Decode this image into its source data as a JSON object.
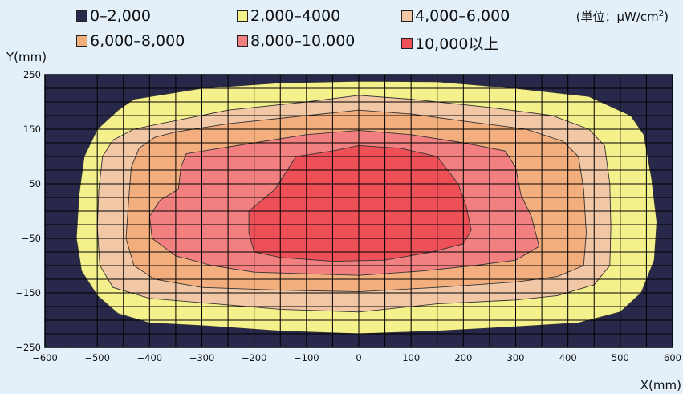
{
  "legend": {
    "items": [
      {
        "label": "0–2,000",
        "color": "#28284a"
      },
      {
        "label": "2,000–4000",
        "color": "#f4f08c"
      },
      {
        "label": "4,000–6,000",
        "color": "#f2c7a6"
      },
      {
        "label": "6,000–8,000",
        "color": "#f3ae7e"
      },
      {
        "label": "8,000–10,000",
        "color": "#f28080"
      },
      {
        "label": "10,000以上",
        "color": "#ee5058"
      }
    ],
    "unit_prefix": "(単位：μW/cm",
    "unit_sup": "2",
    "unit_suffix": ")"
  },
  "chart_data": {
    "type": "heatmap",
    "xlabel": "X(mm)",
    "ylabel": "Y(mm)",
    "xlim": [
      -600,
      600
    ],
    "ylim": [
      -250,
      250
    ],
    "x_ticks": [
      "-600",
      "-500",
      "-400",
      "-300",
      "-200",
      "-100",
      "0",
      "100",
      "200",
      "300",
      "400",
      "500",
      "600"
    ],
    "y_ticks": [
      "250",
      "150",
      "50",
      "-50",
      "-150",
      "-250"
    ],
    "grid": true,
    "levels": [
      {
        "range": "0–2,000",
        "color": "#28284a",
        "contour": [
          [
            -600,
            250
          ],
          [
            600,
            250
          ],
          [
            600,
            -250
          ],
          [
            -600,
            -250
          ]
        ]
      },
      {
        "range": "2,000–4000",
        "color": "#f4f08c",
        "contour": [
          [
            -430,
            205
          ],
          [
            -300,
            225
          ],
          [
            -150,
            235
          ],
          [
            0,
            238
          ],
          [
            150,
            237
          ],
          [
            300,
            225
          ],
          [
            440,
            210
          ],
          [
            520,
            175
          ],
          [
            545,
            140
          ],
          [
            560,
            60
          ],
          [
            570,
            -20
          ],
          [
            565,
            -90
          ],
          [
            540,
            -150
          ],
          [
            500,
            -185
          ],
          [
            420,
            -205
          ],
          [
            300,
            -212
          ],
          [
            150,
            -220
          ],
          [
            0,
            -225
          ],
          [
            -150,
            -220
          ],
          [
            -300,
            -210
          ],
          [
            -400,
            -205
          ],
          [
            -460,
            -188
          ],
          [
            -500,
            -155
          ],
          [
            -530,
            -110
          ],
          [
            -540,
            -50
          ],
          [
            -535,
            30
          ],
          [
            -525,
            100
          ],
          [
            -500,
            150
          ],
          [
            -460,
            185
          ]
        ]
      },
      {
        "range": "4,000–6,000",
        "color": "#f2c7a6",
        "contour": [
          [
            -380,
            160
          ],
          [
            -250,
            185
          ],
          [
            -100,
            200
          ],
          [
            0,
            212
          ],
          [
            100,
            205
          ],
          [
            250,
            190
          ],
          [
            370,
            175
          ],
          [
            440,
            150
          ],
          [
            470,
            120
          ],
          [
            480,
            50
          ],
          [
            482,
            -30
          ],
          [
            480,
            -100
          ],
          [
            450,
            -135
          ],
          [
            380,
            -155
          ],
          [
            300,
            -163
          ],
          [
            150,
            -170
          ],
          [
            0,
            -185
          ],
          [
            -150,
            -180
          ],
          [
            -300,
            -168
          ],
          [
            -400,
            -160
          ],
          [
            -470,
            -140
          ],
          [
            -495,
            -100
          ],
          [
            -500,
            -30
          ],
          [
            -497,
            40
          ],
          [
            -490,
            100
          ],
          [
            -470,
            130
          ],
          [
            -430,
            150
          ]
        ]
      },
      {
        "range": "6,000–8,000",
        "color": "#f3ae7e",
        "contour": [
          [
            -350,
            145
          ],
          [
            -250,
            160
          ],
          [
            -100,
            175
          ],
          [
            0,
            185
          ],
          [
            100,
            178
          ],
          [
            200,
            165
          ],
          [
            320,
            150
          ],
          [
            390,
            128
          ],
          [
            420,
            100
          ],
          [
            430,
            40
          ],
          [
            435,
            -40
          ],
          [
            430,
            -100
          ],
          [
            380,
            -120
          ],
          [
            300,
            -130
          ],
          [
            150,
            -140
          ],
          [
            0,
            -148
          ],
          [
            -150,
            -145
          ],
          [
            -300,
            -140
          ],
          [
            -390,
            -125
          ],
          [
            -430,
            -100
          ],
          [
            -445,
            -50
          ],
          [
            -440,
            20
          ],
          [
            -435,
            80
          ],
          [
            -420,
            115
          ],
          [
            -390,
            135
          ]
        ]
      },
      {
        "range": "8,000–10,000",
        "color": "#f28080",
        "contour": [
          [
            -330,
            105
          ],
          [
            -200,
            125
          ],
          [
            -100,
            140
          ],
          [
            0,
            148
          ],
          [
            100,
            140
          ],
          [
            200,
            125
          ],
          [
            280,
            110
          ],
          [
            300,
            80
          ],
          [
            310,
            30
          ],
          [
            330,
            -10
          ],
          [
            345,
            -65
          ],
          [
            300,
            -90
          ],
          [
            220,
            -100
          ],
          [
            120,
            -110
          ],
          [
            0,
            -118
          ],
          [
            -100,
            -115
          ],
          [
            -200,
            -112
          ],
          [
            -280,
            -100
          ],
          [
            -350,
            -82
          ],
          [
            -395,
            -50
          ],
          [
            -400,
            -10
          ],
          [
            -380,
            20
          ],
          [
            -345,
            40
          ],
          [
            -340,
            80
          ]
        ]
      },
      {
        "range": "10,000以上",
        "color": "#ee5058",
        "contour": [
          [
            -120,
            100
          ],
          [
            -50,
            110
          ],
          [
            0,
            120
          ],
          [
            80,
            115
          ],
          [
            150,
            100
          ],
          [
            190,
            50
          ],
          [
            205,
            10
          ],
          [
            215,
            -35
          ],
          [
            200,
            -60
          ],
          [
            140,
            -75
          ],
          [
            50,
            -90
          ],
          [
            -50,
            -92
          ],
          [
            -150,
            -85
          ],
          [
            -200,
            -75
          ],
          [
            -210,
            -40
          ],
          [
            -210,
            0
          ],
          [
            -160,
            40
          ]
        ]
      }
    ]
  }
}
